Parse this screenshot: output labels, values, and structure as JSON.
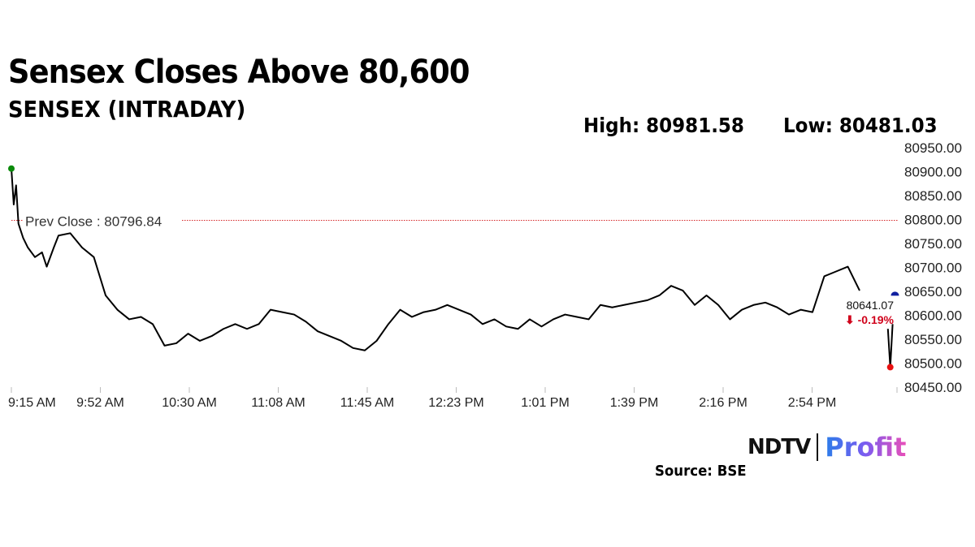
{
  "header": {
    "title": "Sensex Closes Above 80,600",
    "subtitle": "SENSEX (INTRADAY)",
    "high": "High: 80981.58",
    "low": "Low: 80481.03"
  },
  "footer": {
    "source": "Source: BSE",
    "logo_text": "NDTV | Profit"
  },
  "chart_data": {
    "type": "line",
    "title": "Sensex Closes Above 80,600",
    "subtitle": "SENSEX (INTRADAY)",
    "ylim": [
      80450,
      80950
    ],
    "yticks": [
      "80450.00",
      "80500.00",
      "80550.00",
      "80600.00",
      "80650.00",
      "80700.00",
      "80750.00",
      "80800.00",
      "80850.00",
      "80900.00",
      "80950.00"
    ],
    "xticks": [
      "9:15 AM",
      "9:52 AM",
      "10:30 AM",
      "11:08 AM",
      "11:45 AM",
      "12:23 PM",
      "1:01 PM",
      "1:39 PM",
      "2:16 PM",
      "2:54 PM"
    ],
    "xrange": [
      "9:15",
      "15:30"
    ],
    "prev_close": {
      "label": "Prev Close : 80796.84",
      "value": 80796.84,
      "color": "#d62728"
    },
    "last": {
      "value_label": "80641.07",
      "change_label": "⬇ -0.19%",
      "value": 80641.07,
      "change_color": "#d0021b"
    },
    "colors": {
      "line": "#000000",
      "open_marker": "#0a8a0a",
      "low_marker": "#e81010",
      "close_marker": "#1020a0"
    },
    "series": [
      {
        "x": [
          "9:15",
          "9:16",
          "9:17",
          "9:18",
          "9:20",
          "9:22",
          "9:25",
          "9:28",
          "9:30",
          "9:33",
          "9:35",
          "9:40",
          "9:45",
          "9:50",
          "9:55",
          "10:00",
          "10:05",
          "10:10",
          "10:15",
          "10:20",
          "10:25",
          "10:30",
          "10:35",
          "10:40",
          "10:45",
          "10:50",
          "10:55",
          "11:00",
          "11:05",
          "11:10",
          "11:15",
          "11:20",
          "11:25",
          "11:30",
          "11:35",
          "11:40",
          "11:45",
          "11:50",
          "11:55",
          "12:00",
          "12:05",
          "12:10",
          "12:15",
          "12:20",
          "12:25",
          "12:30",
          "12:35",
          "12:40",
          "12:45",
          "12:50",
          "12:55",
          "13:00",
          "13:05",
          "13:10",
          "13:15",
          "13:20",
          "13:25",
          "13:30",
          "13:35",
          "13:40",
          "13:45",
          "13:50",
          "13:55",
          "14:00",
          "14:05",
          "14:10",
          "14:15",
          "14:20",
          "14:25",
          "14:30",
          "14:35",
          "14:40",
          "14:45",
          "14:50",
          "14:55",
          "15:00",
          "15:05",
          "15:10",
          "15:15",
          "15:27",
          "15:28",
          "15:29",
          "15:30"
        ],
        "y": [
          80905,
          80830,
          80870,
          80790,
          80760,
          80740,
          80720,
          80730,
          80700,
          80740,
          80765,
          80770,
          80740,
          80720,
          80640,
          80610,
          80590,
          80595,
          80580,
          80535,
          80540,
          80560,
          80545,
          80555,
          80570,
          80580,
          80570,
          80580,
          80610,
          80605,
          80600,
          80585,
          80565,
          80555,
          80545,
          80530,
          80525,
          80545,
          80580,
          80610,
          80595,
          80605,
          80610,
          80620,
          80610,
          80600,
          80580,
          80590,
          80575,
          80570,
          80590,
          80575,
          80590,
          80600,
          80595,
          80590,
          80620,
          80615,
          80620,
          80625,
          80630,
          80640,
          80660,
          80650,
          80620,
          80640,
          80620,
          80590,
          80610,
          80620,
          80625,
          80615,
          80600,
          80610,
          80605,
          80680,
          80690,
          80700,
          80650,
          80570,
          80490,
          80580,
          80641.07
        ]
      }
    ]
  }
}
